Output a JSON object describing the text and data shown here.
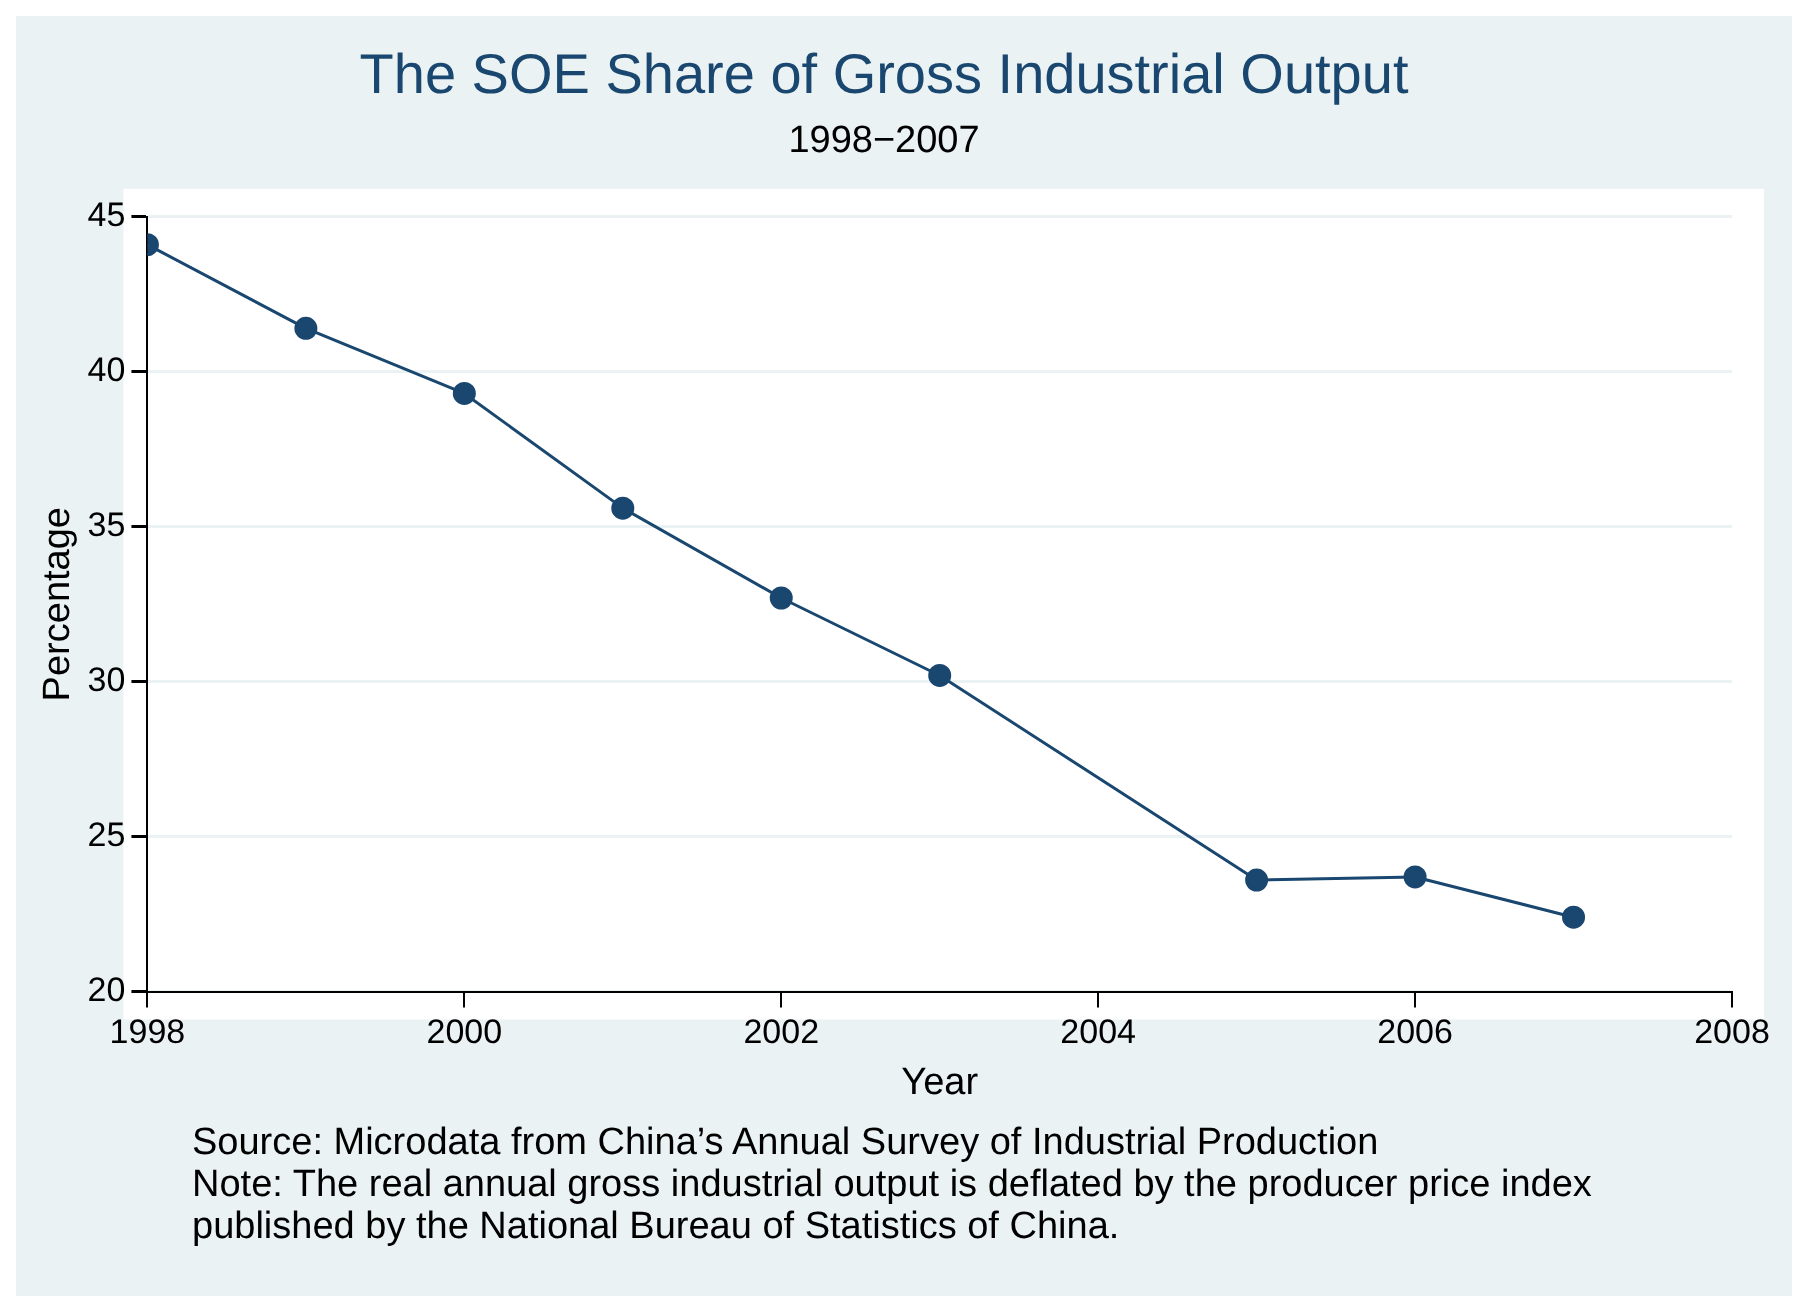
{
  "chart_data": {
    "type": "line",
    "title": "The SOE Share of Gross Industrial Output",
    "subtitle": "1998−2007",
    "xlabel": "Year",
    "ylabel": "Percentage",
    "x": [
      1998,
      1999,
      2000,
      2001,
      2002,
      2003,
      2005,
      2006,
      2007
    ],
    "series": [
      {
        "color": "#1a476f",
        "values": [
          44.1,
          41.4,
          39.3,
          35.6,
          32.7,
          30.2,
          23.6,
          23.7,
          22.4
        ]
      }
    ],
    "xlim": [
      1998,
      2008
    ],
    "xticks": [
      1998,
      2000,
      2002,
      2004,
      2006,
      2008
    ],
    "ylim": [
      20,
      45
    ],
    "yticks": [
      20,
      25,
      30,
      35,
      40,
      45
    ],
    "grid": "y",
    "legend": false,
    "marker": "circle",
    "line_style": "solid",
    "annotations": [
      "Source: Microdata from China’s Annual Survey of Industrial Production",
      "Note: The real annual gross industrial output is deflated by the producer price index published by the National Bureau of Statistics of China."
    ]
  }
}
